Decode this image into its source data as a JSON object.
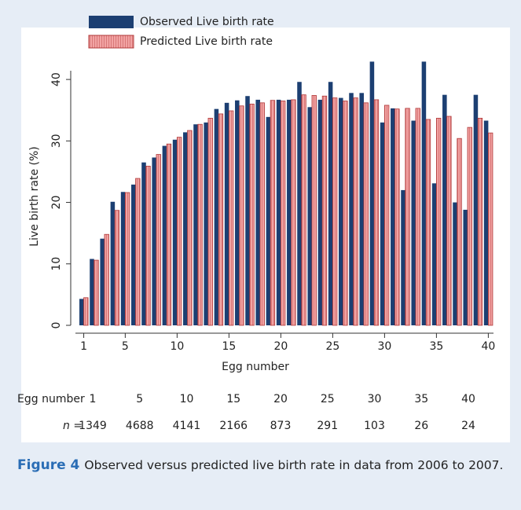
{
  "chart_data": {
    "type": "bar",
    "xlabel": "Egg number",
    "ylabel": "Live birth rate (%)",
    "x": [
      1,
      2,
      3,
      4,
      5,
      6,
      7,
      8,
      9,
      10,
      11,
      12,
      13,
      14,
      15,
      16,
      17,
      18,
      19,
      20,
      21,
      22,
      23,
      24,
      25,
      26,
      27,
      28,
      29,
      30,
      31,
      32,
      33,
      34,
      35,
      36,
      37,
      38,
      39,
      40
    ],
    "series": [
      {
        "name": "Observed Live birth rate",
        "color": "#1c3f72",
        "values": [
          4.3,
          10.8,
          14.1,
          20.1,
          21.7,
          22.9,
          26.5,
          27.3,
          29.2,
          30.2,
          31.4,
          32.7,
          33.0,
          35.2,
          36.2,
          36.6,
          37.3,
          36.7,
          33.9,
          36.7,
          36.7,
          39.6,
          35.5,
          36.7,
          39.6,
          37.0,
          37.8,
          37.8,
          42.9,
          33.0,
          35.3,
          22.0,
          33.3,
          42.9,
          23.1,
          37.5,
          20.0,
          18.8,
          37.5,
          33.3
        ]
      },
      {
        "name": "Predicted Live birth rate",
        "color": "#f2a3a3",
        "values": [
          4.5,
          10.6,
          14.8,
          18.7,
          21.6,
          23.9,
          25.9,
          27.8,
          29.5,
          30.6,
          31.7,
          32.7,
          33.7,
          34.4,
          34.9,
          35.7,
          36.0,
          36.2,
          36.6,
          36.5,
          36.7,
          37.5,
          37.4,
          37.3,
          37.0,
          36.5,
          37.0,
          36.2,
          36.7,
          35.8,
          35.2,
          35.3,
          35.3,
          33.5,
          33.7,
          34.0,
          30.4,
          32.2,
          33.7,
          31.3
        ]
      }
    ],
    "xlim": [
      0.2,
      40.5
    ],
    "xticks": [
      1,
      5,
      10,
      15,
      20,
      25,
      30,
      35,
      40
    ],
    "ylim": [
      0,
      45
    ],
    "yticks": [
      0,
      10,
      20,
      30,
      40
    ],
    "legend": "top-left",
    "n_table": {
      "header": "Egg number",
      "eggs": [
        1,
        5,
        10,
        15,
        20,
        25,
        30,
        35,
        40
      ],
      "n_label": "n =",
      "n": [
        1349,
        4688,
        4141,
        2166,
        873,
        291,
        103,
        26,
        24
      ]
    }
  },
  "caption": {
    "label": "Figure 4",
    "text": "Observed versus predicted live birth rate in data from 2006 to 2007."
  }
}
